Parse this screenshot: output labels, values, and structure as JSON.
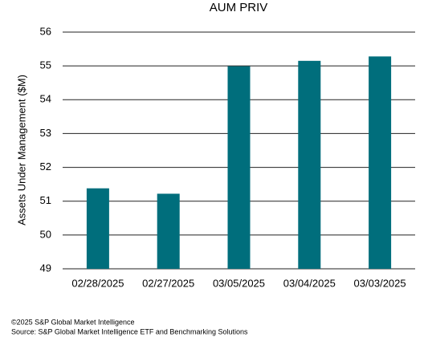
{
  "chart_data": {
    "type": "bar",
    "title": "AUM PRIV",
    "y_label": "Assets Under Management ($M)",
    "categories": [
      "02/28/2025",
      "02/27/2025",
      "03/05/2025",
      "03/04/2025",
      "03/03/2025"
    ],
    "values": [
      51.38,
      51.22,
      54.99,
      55.15,
      55.28
    ],
    "color": "#006e7c",
    "ylim": [
      49,
      56
    ],
    "yticks": [
      49,
      50,
      51,
      52,
      53,
      54,
      55,
      56
    ],
    "grid": true,
    "footer": [
      "©2025 S&P Global Market Intelligence",
      "Source: S&P Global Market Intelligence ETF and Benchmarking Solutions"
    ]
  }
}
